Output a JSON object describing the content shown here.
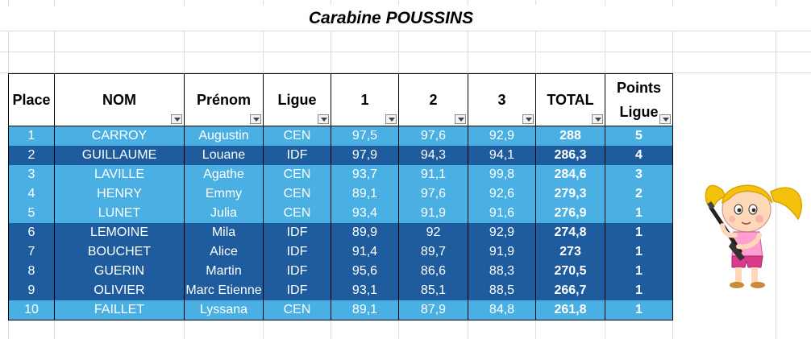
{
  "title": "Carabine POUSSINS",
  "headers": {
    "place": "Place",
    "nom": "NOM",
    "prenom": "Prénom",
    "ligue": "Ligue",
    "s1": "1",
    "s2": "2",
    "s3": "3",
    "total": "TOTAL",
    "points_line1": "Points",
    "points_line2": "Ligue"
  },
  "rows": [
    {
      "place": "1",
      "nom": "CARROY",
      "prenom": "Augustin",
      "ligue": "CEN",
      "s1": "97,5",
      "s2": "97,6",
      "s3": "92,9",
      "total": "288",
      "points": "5"
    },
    {
      "place": "2",
      "nom": "GUILLAUME",
      "prenom": "Louane",
      "ligue": "IDF",
      "s1": "97,9",
      "s2": "94,3",
      "s3": "94,1",
      "total": "286,3",
      "points": "4"
    },
    {
      "place": "3",
      "nom": "LAVILLE",
      "prenom": "Agathe",
      "ligue": "CEN",
      "s1": "93,7",
      "s2": "91,1",
      "s3": "99,8",
      "total": "284,6",
      "points": "3"
    },
    {
      "place": "4",
      "nom": "HENRY",
      "prenom": "Emmy",
      "ligue": "CEN",
      "s1": "89,1",
      "s2": "97,6",
      "s3": "92,6",
      "total": "279,3",
      "points": "2"
    },
    {
      "place": "5",
      "nom": "LUNET",
      "prenom": "Julia",
      "ligue": "CEN",
      "s1": "93,4",
      "s2": "91,9",
      "s3": "91,6",
      "total": "276,9",
      "points": "1"
    },
    {
      "place": "6",
      "nom": "LEMOINE",
      "prenom": "Mila",
      "ligue": "IDF",
      "s1": "89,9",
      "s2": "92",
      "s3": "92,9",
      "total": "274,8",
      "points": "1"
    },
    {
      "place": "7",
      "nom": "BOUCHET",
      "prenom": "Alice",
      "ligue": "IDF",
      "s1": "91,4",
      "s2": "89,7",
      "s3": "91,9",
      "total": "273",
      "points": "1"
    },
    {
      "place": "8",
      "nom": "GUERIN",
      "prenom": "Martin",
      "ligue": "IDF",
      "s1": "95,6",
      "s2": "86,6",
      "s3": "88,3",
      "total": "270,5",
      "points": "1"
    },
    {
      "place": "9",
      "nom": "OLIVIER",
      "prenom": "Marc Etienne",
      "ligue": "IDF",
      "s1": "93,1",
      "s2": "85,1",
      "s3": "88,5",
      "total": "266,7",
      "points": "1"
    },
    {
      "place": "10",
      "nom": "FAILLET",
      "prenom": "Lyssana",
      "ligue": "CEN",
      "s1": "89,1",
      "s2": "87,9",
      "s3": "84,8",
      "total": "261,8",
      "points": "1"
    }
  ],
  "colors": {
    "row_light": "#4ab0e3",
    "row_dark": "#1f5c9e"
  },
  "mascot": "girl-with-rifle-icon"
}
